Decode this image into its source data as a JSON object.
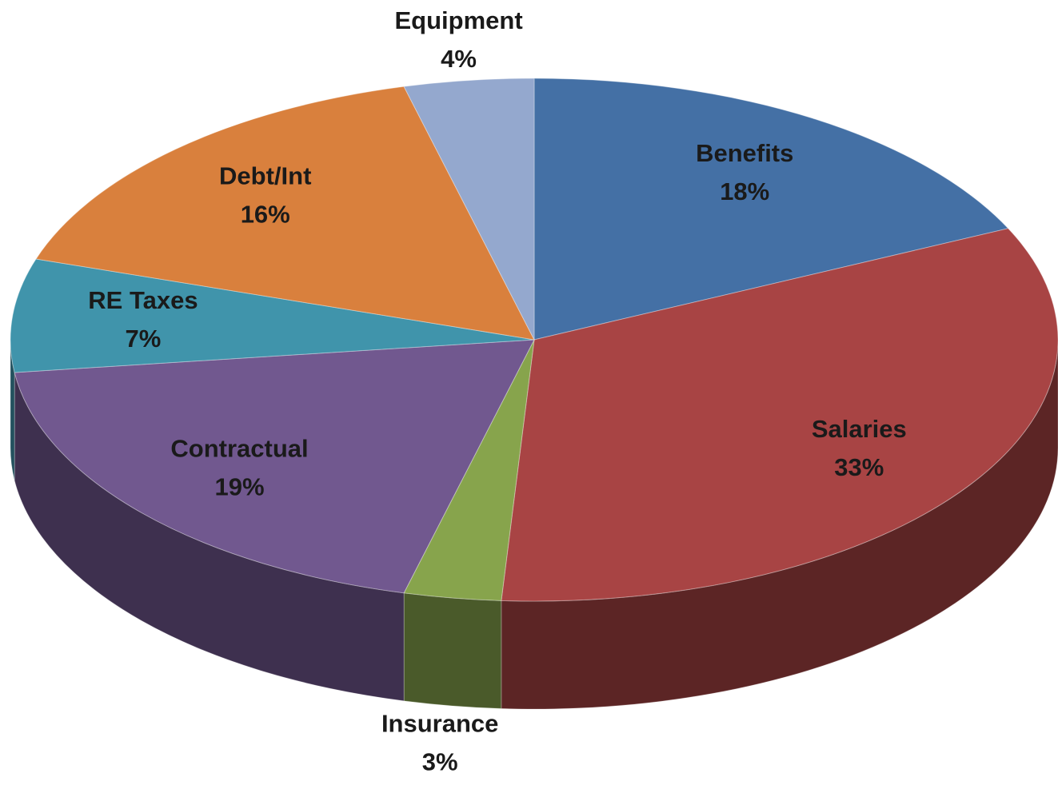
{
  "chart_data": {
    "type": "pie3d",
    "categories": [
      "Benefits",
      "Salaries",
      "Insurance",
      "Contractual",
      "RE Taxes",
      "Debt/Int",
      "Equipment"
    ],
    "values": [
      18,
      33,
      3,
      19,
      7,
      16,
      4
    ],
    "value_labels": [
      "18%",
      "33%",
      "3%",
      "19%",
      "7%",
      "16%",
      "4%"
    ],
    "colors": [
      "#4470a5",
      "#a84444",
      "#87a44c",
      "#71588f",
      "#4094ab",
      "#d9803d",
      "#94a8ce"
    ]
  }
}
